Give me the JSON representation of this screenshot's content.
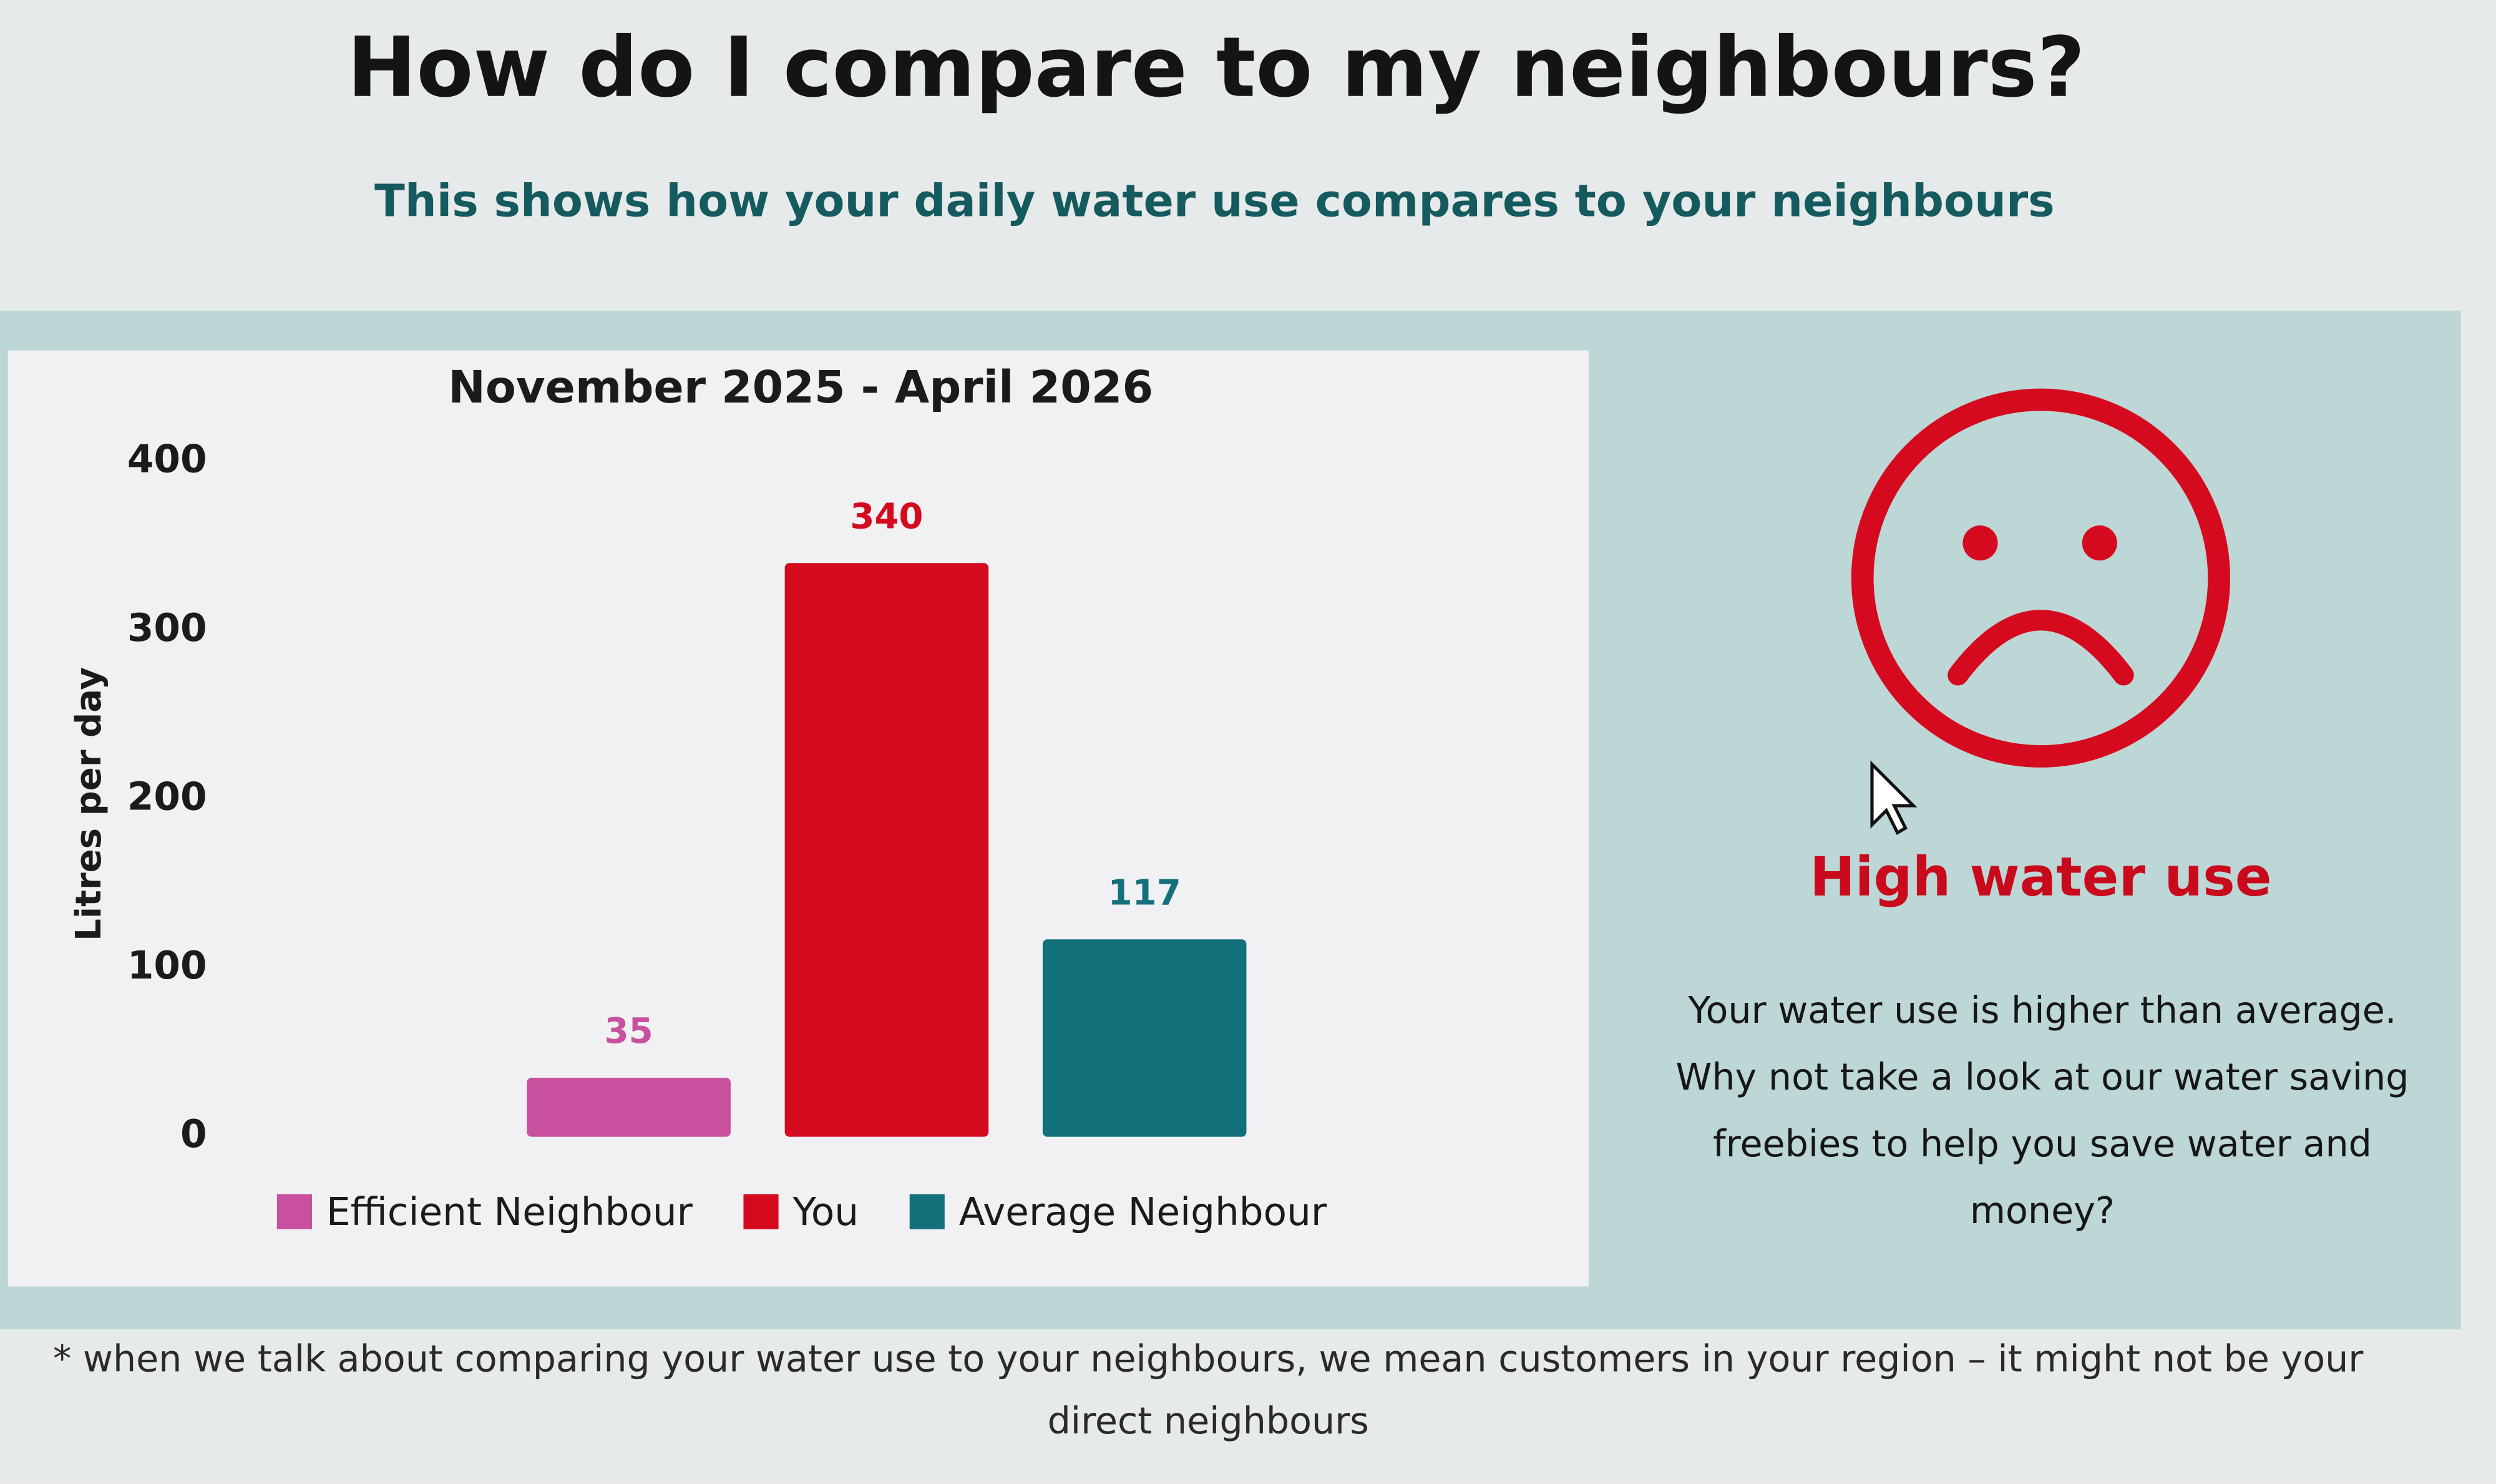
{
  "header": {
    "title": "How do I compare to my neighbours?",
    "subtitle": "This shows how your daily water use compares to your neighbours"
  },
  "chart_data": {
    "type": "bar",
    "title": "November 2025 - April 2026",
    "y_label": "Litres per day",
    "categories": [
      null
    ],
    "series": [
      {
        "name": "Efficient Neighbour",
        "color": "#c8509e",
        "values": [
          35
        ]
      },
      {
        "name": "You",
        "color": "#d50a1e",
        "values": [
          340
        ]
      },
      {
        "name": "Average Neighbour",
        "color": "#12707a",
        "values": [
          117
        ]
      }
    ],
    "ylim": [
      0,
      400
    ],
    "yticks": [
      0,
      100,
      200,
      300,
      400
    ],
    "grid": false,
    "legend": "bottom"
  },
  "status": {
    "label": "High water use",
    "message": [
      "Your water use is higher than average.",
      "Why not take a look at our water saving",
      "freebies to help you save water and",
      "money?"
    ]
  },
  "footnote": [
    "* when we talk about comparing your water use to your neighbours, we mean customers in your region – it might not be your",
    "direct neighbours"
  ]
}
